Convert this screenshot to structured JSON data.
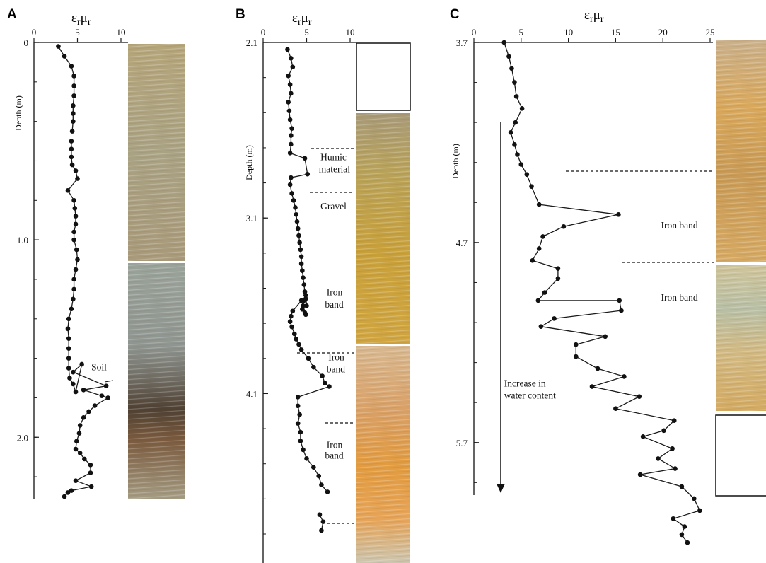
{
  "figure": {
    "axis_title_main": "ε",
    "axis_title_sub1": "r",
    "axis_title_mid": "μ",
    "axis_title_sub2": "r",
    "depth_label": "Depth (m)"
  },
  "colors": {
    "line": "#1a1a1a",
    "marker": "#111111",
    "text": "#111111"
  },
  "chart_data": [
    {
      "type": "line",
      "panel_label": "A",
      "xlabel": "εrμr",
      "ylabel": "Depth (m)",
      "xlim": [
        0,
        10
      ],
      "ylim": [
        2.3,
        0
      ],
      "x_ticks": [
        "0",
        "5",
        "10"
      ],
      "y_ticks": [
        "0",
        "1.0",
        "2.0"
      ],
      "segments": [
        {
          "x": [
            2.8,
            3.5,
            4.3,
            4.6,
            4.6,
            4.6,
            4.5,
            4.5,
            4.5,
            4.4
          ],
          "y": [
            0.02,
            0.07,
            0.12,
            0.17,
            0.22,
            0.27,
            0.32,
            0.36,
            0.4,
            0.45
          ]
        },
        {
          "x": [
            4.3,
            4.3,
            4.3,
            4.4,
            4.8,
            5.0,
            3.9,
            4.6,
            4.7,
            4.8,
            4.8,
            4.6,
            4.6,
            4.9,
            5.0,
            4.8,
            4.6,
            4.6,
            4.5,
            4.3,
            4.0,
            3.9,
            4.0,
            4.0,
            4.0,
            4.0,
            4.1,
            4.5,
            4.8,
            5.5,
            4.5,
            8.3,
            5.7,
            7.8,
            8.5,
            7.0,
            6.3,
            5.7,
            5.3,
            5.2,
            4.9,
            4.8,
            5.3,
            5.8,
            6.5,
            6.5,
            4.8,
            6.6,
            4.3,
            3.9,
            3.5
          ],
          "y": [
            0.5,
            0.54,
            0.58,
            0.62,
            0.65,
            0.69,
            0.75,
            0.8,
            0.84,
            0.88,
            0.92,
            0.96,
            1.0,
            1.05,
            1.1,
            1.15,
            1.2,
            1.25,
            1.3,
            1.35,
            1.4,
            1.45,
            1.5,
            1.55,
            1.6,
            1.65,
            1.7,
            1.73,
            1.77,
            1.63,
            1.67,
            1.74,
            1.76,
            1.79,
            1.8,
            1.84,
            1.87,
            1.9,
            1.94,
            1.98,
            2.02,
            2.06,
            2.08,
            2.11,
            2.14,
            2.18,
            2.22,
            2.25,
            2.27,
            2.28,
            2.3
          ]
        }
      ],
      "annotations": [
        {
          "text": "Soil",
          "x": 6.6,
          "y": 1.66
        }
      ]
    },
    {
      "type": "line",
      "panel_label": "B",
      "xlabel": "εrμr",
      "ylabel": "Depth (m)",
      "xlim": [
        0,
        10
      ],
      "ylim": [
        4.9,
        2.1
      ],
      "x_ticks": [
        "0",
        "5",
        "10"
      ],
      "y_ticks": [
        "2.1",
        "3.1",
        "4.1"
      ],
      "segments": [
        {
          "x": [
            2.8,
            3.2,
            3.4,
            2.9,
            3.1,
            3.2,
            2.9,
            3.0,
            3.1,
            3.3,
            3.2,
            3.2,
            3.1,
            4.8,
            5.1,
            3.2,
            3.1,
            3.3,
            3.5,
            3.7,
            3.8,
            3.9,
            4.0,
            4.1,
            4.2,
            4.3,
            4.4,
            4.4,
            4.5,
            4.6,
            4.7,
            4.8,
            4.9,
            5.0,
            4.9,
            4.7,
            4.6,
            4.5,
            4.8,
            4.9,
            4.4,
            3.4,
            3.2,
            3.1,
            3.3,
            3.6,
            3.8,
            4.1,
            4.4,
            5.2,
            5.8,
            6.8,
            7.1,
            7.6,
            4.0,
            4.0,
            4.2,
            4.0,
            4.3,
            4.3,
            4.6,
            5.0,
            5.8,
            6.4,
            6.7,
            7.4
          ],
          "y": [
            2.14,
            2.19,
            2.24,
            2.29,
            2.34,
            2.39,
            2.44,
            2.49,
            2.54,
            2.59,
            2.63,
            2.68,
            2.73,
            2.76,
            2.85,
            2.87,
            2.91,
            2.96,
            3.0,
            3.04,
            3.08,
            3.12,
            3.16,
            3.2,
            3.24,
            3.28,
            3.32,
            3.36,
            3.4,
            3.44,
            3.48,
            3.52,
            3.56,
            3.6,
            3.54,
            3.57,
            3.6,
            3.62,
            3.64,
            3.65,
            3.57,
            3.63,
            3.66,
            3.69,
            3.72,
            3.76,
            3.79,
            3.82,
            3.85,
            3.9,
            3.95,
            4.0,
            4.04,
            4.06,
            4.12,
            4.17,
            4.22,
            4.27,
            4.32,
            4.37,
            4.42,
            4.47,
            4.52,
            4.57,
            4.62,
            4.66
          ]
        },
        {
          "x": [
            6.5,
            6.9,
            6.7
          ],
          "y": [
            4.79,
            4.83,
            4.88
          ]
        }
      ],
      "annotations": [
        {
          "text": "Humic",
          "x": 6.6,
          "y": 2.77
        },
        {
          "text": "material",
          "x": 6.4,
          "y": 2.84
        },
        {
          "text": "Gravel",
          "x": 6.6,
          "y": 3.05
        },
        {
          "text": "Iron",
          "x": 7.3,
          "y": 3.54
        },
        {
          "text": "band",
          "x": 7.1,
          "y": 3.61
        },
        {
          "text": "Iron",
          "x": 7.5,
          "y": 3.91
        },
        {
          "text": "band",
          "x": 7.3,
          "y": 3.98
        },
        {
          "text": "Iron",
          "x": 7.3,
          "y": 4.41
        },
        {
          "text": "band",
          "x": 7.1,
          "y": 4.47
        }
      ]
    },
    {
      "type": "line",
      "panel_label": "C",
      "xlabel": "εrμr",
      "ylabel": "Depth (m)",
      "xlim": [
        0,
        25
      ],
      "ylim": [
        5.92,
        3.7
      ],
      "x_ticks": [
        "0",
        "5",
        "10",
        "15",
        "20",
        "25"
      ],
      "y_ticks": [
        "3.7",
        "4.7",
        "5.7"
      ],
      "segments": [
        {
          "x": [
            3.2,
            3.7,
            4.0,
            4.3,
            4.5,
            5.1,
            4.4,
            3.9,
            4.3,
            4.6,
            5.0,
            5.6,
            6.1,
            6.9,
            15.3,
            9.5,
            7.3,
            6.9,
            6.2,
            8.9,
            8.9,
            7.5,
            6.8,
            15.4,
            15.6,
            8.5,
            7.1,
            13.9,
            10.8,
            10.8,
            13.1,
            15.9,
            12.5,
            17.5,
            15.0,
            21.2,
            20.1,
            17.9,
            21.0,
            19.5,
            21.3,
            17.6,
            22.0,
            23.3,
            23.9,
            21.1,
            22.3,
            22.0,
            22.6
          ],
          "y": [
            3.7,
            3.77,
            3.83,
            3.9,
            3.97,
            4.03,
            4.1,
            4.15,
            4.21,
            4.26,
            4.31,
            4.36,
            4.42,
            4.51,
            4.56,
            4.62,
            4.67,
            4.73,
            4.79,
            4.83,
            4.88,
            4.95,
            4.99,
            4.99,
            5.04,
            5.08,
            5.12,
            5.17,
            5.21,
            5.27,
            5.33,
            5.37,
            5.42,
            5.47,
            5.53,
            5.59,
            5.64,
            5.67,
            5.73,
            5.78,
            5.83,
            5.86,
            5.92,
            5.98,
            6.04,
            6.08,
            6.12,
            6.16,
            6.2
          ]
        }
      ],
      "annotations": [
        {
          "text": "Iron band",
          "x": 19.8,
          "y": 4.63
        },
        {
          "text": "Iron band",
          "x": 19.8,
          "y": 4.99
        },
        {
          "text": "Increase in",
          "x": 3.2,
          "y": 5.42
        },
        {
          "text": "water content",
          "x": 3.2,
          "y": 5.48
        }
      ]
    }
  ]
}
